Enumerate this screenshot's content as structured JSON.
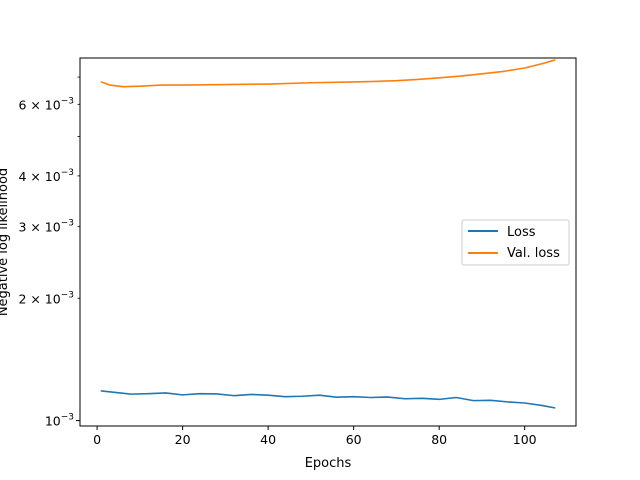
{
  "chart_data": {
    "type": "line",
    "title": "",
    "xlabel": "Epochs",
    "ylabel": "Negative log likelihood",
    "xlim": [
      -4,
      112
    ],
    "ylim": [
      0.00097,
      0.0078
    ],
    "yscale": "log",
    "grid": false,
    "legend_position": "center-right",
    "x_ticks": [
      0,
      20,
      40,
      60,
      80,
      100
    ],
    "x_tick_labels": [
      "0",
      "20",
      "40",
      "60",
      "80",
      "100"
    ],
    "y_major_ticks": [
      0.001
    ],
    "y_minor_ticks": [
      0.002,
      0.003,
      0.004,
      0.005,
      0.006,
      0.007
    ],
    "y_tick_labels": [
      {
        "value": 0.001,
        "base": "10",
        "exp": "−3"
      },
      {
        "value": 0.002,
        "base": "2 × 10",
        "exp": "−3"
      },
      {
        "value": 0.003,
        "base": "3 × 10",
        "exp": "−3"
      },
      {
        "value": 0.004,
        "base": "4 × 10",
        "exp": "−3"
      },
      {
        "value": 0.006,
        "base": "6 × 10",
        "exp": "−3"
      }
    ],
    "series": [
      {
        "name": "Loss",
        "color": "#1f77b4",
        "x": [
          1,
          4,
          8,
          12,
          16,
          20,
          24,
          28,
          32,
          36,
          40,
          44,
          48,
          52,
          56,
          60,
          64,
          68,
          72,
          76,
          80,
          84,
          88,
          92,
          96,
          100,
          104,
          107
        ],
        "y": [
          0.001183,
          0.001174,
          0.001162,
          0.001165,
          0.00117,
          0.001157,
          0.001165,
          0.001163,
          0.001152,
          0.00116,
          0.001155,
          0.001145,
          0.001148,
          0.001155,
          0.001142,
          0.001145,
          0.00114,
          0.001143,
          0.001132,
          0.001135,
          0.001128,
          0.00114,
          0.00112,
          0.001122,
          0.001112,
          0.001105,
          0.00109,
          0.001075
        ]
      },
      {
        "name": "Val. loss",
        "color": "#ff7f0e",
        "x": [
          1,
          3,
          6,
          10,
          15,
          20,
          25,
          30,
          40,
          50,
          60,
          65,
          70,
          75,
          80,
          85,
          90,
          95,
          100,
          104,
          107
        ],
        "y": [
          0.00681,
          0.00669,
          0.00663,
          0.00665,
          0.00669,
          0.00669,
          0.0067,
          0.00671,
          0.00673,
          0.00678,
          0.00681,
          0.00683,
          0.00686,
          0.00691,
          0.00697,
          0.00704,
          0.00713,
          0.00723,
          0.00737,
          0.00755,
          0.00771
        ]
      }
    ]
  }
}
